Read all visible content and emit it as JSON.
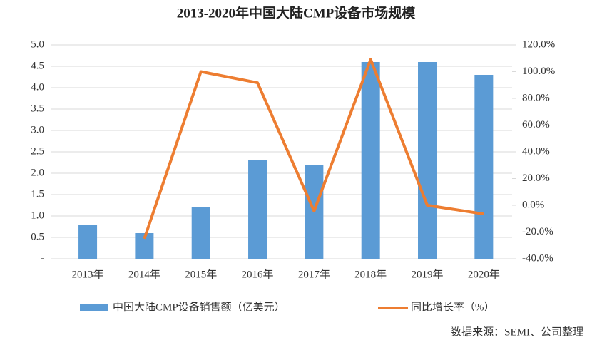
{
  "chart_data": {
    "type": "bar",
    "title": "2013-2020年中国大陆CMP设备市场规模",
    "categories": [
      "2013年",
      "2014年",
      "2015年",
      "2016年",
      "2017年",
      "2018年",
      "2019年",
      "2020年"
    ],
    "series": [
      {
        "name": "中国大陆CMP设备销售额（亿美元）",
        "type": "bar",
        "color": "#5b9bd5",
        "values": [
          0.8,
          0.6,
          1.2,
          2.3,
          2.2,
          4.6,
          4.6,
          4.3
        ]
      },
      {
        "name": "同比增长率（%）",
        "type": "line",
        "axis": "y2",
        "color": "#ed7d31",
        "values": [
          null,
          -25,
          100,
          91.7,
          -4.3,
          109.1,
          0,
          -6.5
        ]
      }
    ],
    "ylim": [
      0,
      5
    ],
    "yticks": [
      {
        "value": 0,
        "label": "-"
      },
      0.5,
      {
        "value": 1,
        "label": "1.0"
      },
      1.5,
      {
        "value": 2,
        "label": "2.0"
      },
      2.5,
      {
        "value": 3,
        "label": "3.0"
      },
      3.5,
      {
        "value": 4,
        "label": "4.0"
      },
      4.5,
      {
        "value": 5,
        "label": "5.0"
      }
    ],
    "y2lim": [
      -40,
      120
    ],
    "y2ticks": [
      {
        "value": -40,
        "label": "-40.0%"
      },
      {
        "value": -20,
        "label": "-20.0%"
      },
      {
        "value": 0,
        "label": "0.0%"
      },
      {
        "value": 20,
        "label": "20.0%"
      },
      {
        "value": 40,
        "label": "40.0%"
      },
      {
        "value": 60,
        "label": "60.0%"
      },
      {
        "value": 80,
        "label": "80.0%"
      },
      {
        "value": 100,
        "label": "100.0%"
      },
      {
        "value": 120,
        "label": "120.0%"
      }
    ],
    "grid": true,
    "legend": "bottom",
    "source": "数据来源：SEMI、公司整理"
  }
}
